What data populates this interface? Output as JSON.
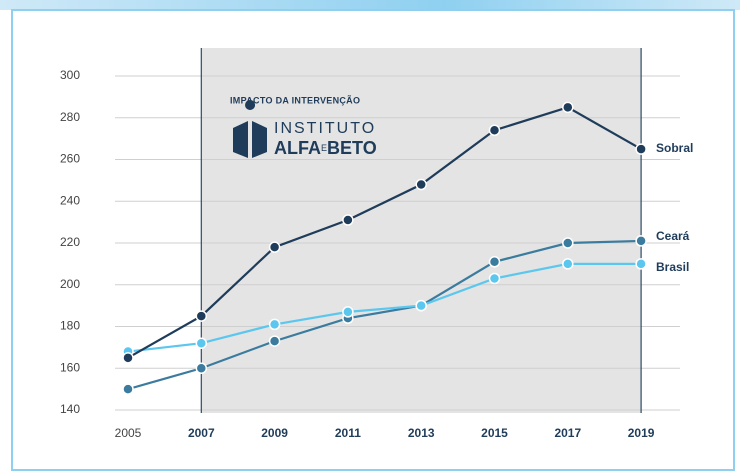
{
  "chart_data": {
    "type": "line",
    "annotation": "IMPACTO DA INTERVENÇÃO",
    "logo": {
      "line1": "INSTITUTO",
      "line2a": "ALFA",
      "line2b": "E",
      "line2c": "BETO"
    },
    "categories": [
      "2005",
      "2007",
      "2009",
      "2011",
      "2013",
      "2015",
      "2017",
      "2019"
    ],
    "series": [
      {
        "name": "Ceará",
        "color": "#3a7b9e",
        "values": [
          150,
          160,
          173,
          184,
          190,
          211,
          220,
          221
        ]
      },
      {
        "name": "Brasil",
        "color": "#5cc7ee",
        "values": [
          168,
          172,
          181,
          187,
          190,
          203,
          210,
          210
        ]
      },
      {
        "name": "Sobral",
        "color": "#1f3c5a",
        "values": [
          165,
          185,
          218,
          231,
          248,
          274,
          285,
          265
        ]
      }
    ],
    "ylim": [
      140,
      300
    ],
    "yticks": [
      140,
      160,
      180,
      200,
      220,
      240,
      260,
      280,
      300
    ],
    "grid": true
  }
}
